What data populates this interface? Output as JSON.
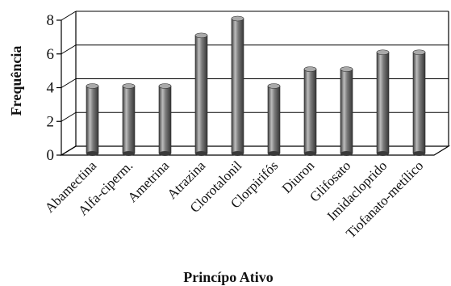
{
  "chart_data": {
    "type": "bar",
    "title": "",
    "xlabel": "Princípo Ativo",
    "ylabel": "Frequência",
    "categories": [
      "Abamectina",
      "Alfa-ciperm.",
      "Ametrina",
      "Atrazina",
      "Clorotalonil",
      "Clorpirifós",
      "Diuron",
      "Glifosato",
      "Imidacloprido",
      "Tiofanato-metílico"
    ],
    "values": [
      4,
      4,
      4,
      7,
      8,
      4,
      5,
      5,
      6,
      6
    ],
    "ylim": [
      0,
      8
    ],
    "yticks": [
      "0",
      "2",
      "4",
      "6",
      "8"
    ],
    "grid": true,
    "legend": "none",
    "style": "3d-cylinder",
    "colors": {
      "bar": "#6b6b6b",
      "bar_light": "#cfcfcf",
      "bar_dark": "#3a3a3a",
      "top": "#a9a9a9",
      "grid": "#000000"
    }
  }
}
